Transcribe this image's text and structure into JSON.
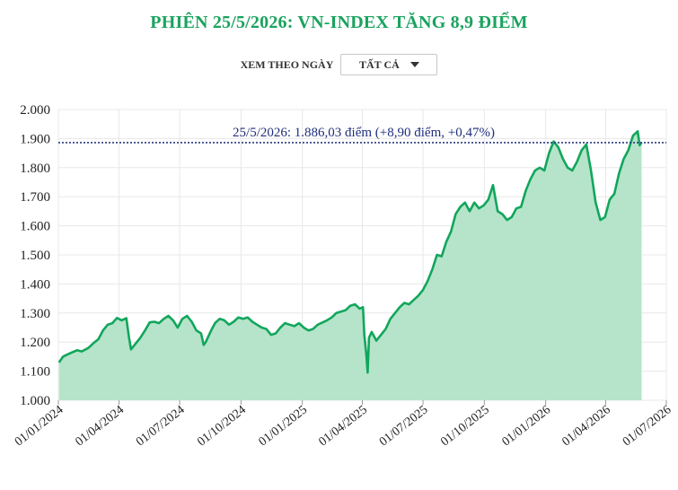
{
  "header": {
    "title": "PHIÊN 25/5/2026: VN-INDEX TĂNG 8,9 ĐIỂM"
  },
  "filter": {
    "label": "XEM THEO NGÀY",
    "selected": "TẤT CẢ"
  },
  "colors": {
    "title": "#1aa35e",
    "line": "#12a65c",
    "area": "#b5e4ca",
    "refline": "#2b3a7e",
    "annotation": "#1f2f7a",
    "grid": "#e8e8e8"
  },
  "chart_data": {
    "type": "area",
    "title": "PHIÊN 25/5/2026: VN-INDEX TĂNG 8,9 ĐIỂM",
    "xlabel": "",
    "ylabel": "",
    "xlim": [
      "2024-01-01",
      "2026-07-01"
    ],
    "ylim": [
      1000,
      2000
    ],
    "yticks": [
      1000,
      1100,
      1200,
      1300,
      1400,
      1500,
      1600,
      1700,
      1800,
      1900,
      2000
    ],
    "ytick_labels": [
      "1.000",
      "1.100",
      "1.200",
      "1.300",
      "1.400",
      "1.500",
      "1.600",
      "1.700",
      "1.800",
      "1.900",
      "2.000"
    ],
    "xticks": [
      "2024-01-01",
      "2024-04-01",
      "2024-07-01",
      "2024-10-01",
      "2025-01-01",
      "2025-04-01",
      "2025-07-01",
      "2025-10-01",
      "2026-01-01",
      "2026-04-01",
      "2026-07-01"
    ],
    "xtick_labels": [
      "01/01/2024",
      "01/04/2024",
      "01/07/2024",
      "01/10/2024",
      "01/01/2025",
      "01/04/2025",
      "01/07/2025",
      "01/10/2025",
      "01/01/2026",
      "01/04/2026",
      "01/07/2026"
    ],
    "grid": true,
    "reference_line": {
      "y": 1886.03
    },
    "annotation": "25/5/2026: 1.886,03 điểm (+8,90 điểm, +0,47%)",
    "series": [
      {
        "points": [
          [
            "2024-01-02",
            1130
          ],
          [
            "2024-01-08",
            1150
          ],
          [
            "2024-01-15",
            1158
          ],
          [
            "2024-01-22",
            1165
          ],
          [
            "2024-01-29",
            1172
          ],
          [
            "2024-02-05",
            1168
          ],
          [
            "2024-02-15",
            1180
          ],
          [
            "2024-02-22",
            1195
          ],
          [
            "2024-03-01",
            1210
          ],
          [
            "2024-03-08",
            1240
          ],
          [
            "2024-03-15",
            1260
          ],
          [
            "2024-03-22",
            1265
          ],
          [
            "2024-03-29",
            1283
          ],
          [
            "2024-04-05",
            1275
          ],
          [
            "2024-04-12",
            1282
          ],
          [
            "2024-04-16",
            1215
          ],
          [
            "2024-04-19",
            1175
          ],
          [
            "2024-04-26",
            1195
          ],
          [
            "2024-05-03",
            1215
          ],
          [
            "2024-05-10",
            1240
          ],
          [
            "2024-05-17",
            1268
          ],
          [
            "2024-05-24",
            1270
          ],
          [
            "2024-05-31",
            1265
          ],
          [
            "2024-06-07",
            1280
          ],
          [
            "2024-06-14",
            1290
          ],
          [
            "2024-06-21",
            1275
          ],
          [
            "2024-06-28",
            1250
          ],
          [
            "2024-07-05",
            1280
          ],
          [
            "2024-07-12",
            1290
          ],
          [
            "2024-07-19",
            1270
          ],
          [
            "2024-07-26",
            1240
          ],
          [
            "2024-08-02",
            1230
          ],
          [
            "2024-08-06",
            1190
          ],
          [
            "2024-08-09",
            1200
          ],
          [
            "2024-08-16",
            1235
          ],
          [
            "2024-08-23",
            1265
          ],
          [
            "2024-08-30",
            1280
          ],
          [
            "2024-09-06",
            1275
          ],
          [
            "2024-09-13",
            1260
          ],
          [
            "2024-09-20",
            1270
          ],
          [
            "2024-09-27",
            1285
          ],
          [
            "2024-10-04",
            1280
          ],
          [
            "2024-10-11",
            1285
          ],
          [
            "2024-10-18",
            1270
          ],
          [
            "2024-10-25",
            1260
          ],
          [
            "2024-11-01",
            1250
          ],
          [
            "2024-11-08",
            1245
          ],
          [
            "2024-11-15",
            1225
          ],
          [
            "2024-11-22",
            1230
          ],
          [
            "2024-11-29",
            1250
          ],
          [
            "2024-12-06",
            1265
          ],
          [
            "2024-12-13",
            1260
          ],
          [
            "2024-12-20",
            1255
          ],
          [
            "2024-12-27",
            1265
          ],
          [
            "2025-01-03",
            1250
          ],
          [
            "2025-01-10",
            1240
          ],
          [
            "2025-01-17",
            1245
          ],
          [
            "2025-01-24",
            1260
          ],
          [
            "2025-02-07",
            1275
          ],
          [
            "2025-02-14",
            1285
          ],
          [
            "2025-02-21",
            1300
          ],
          [
            "2025-02-28",
            1305
          ],
          [
            "2025-03-07",
            1310
          ],
          [
            "2025-03-14",
            1325
          ],
          [
            "2025-03-21",
            1330
          ],
          [
            "2025-03-28",
            1315
          ],
          [
            "2025-04-02",
            1320
          ],
          [
            "2025-04-04",
            1225
          ],
          [
            "2025-04-07",
            1155
          ],
          [
            "2025-04-09",
            1095
          ],
          [
            "2025-04-11",
            1215
          ],
          [
            "2025-04-15",
            1235
          ],
          [
            "2025-04-22",
            1205
          ],
          [
            "2025-04-29",
            1225
          ],
          [
            "2025-05-06",
            1245
          ],
          [
            "2025-05-13",
            1280
          ],
          [
            "2025-05-20",
            1300
          ],
          [
            "2025-05-27",
            1320
          ],
          [
            "2025-06-03",
            1335
          ],
          [
            "2025-06-10",
            1330
          ],
          [
            "2025-06-17",
            1345
          ],
          [
            "2025-06-24",
            1360
          ],
          [
            "2025-07-01",
            1380
          ],
          [
            "2025-07-08",
            1410
          ],
          [
            "2025-07-15",
            1450
          ],
          [
            "2025-07-22",
            1500
          ],
          [
            "2025-07-29",
            1495
          ],
          [
            "2025-08-05",
            1545
          ],
          [
            "2025-08-12",
            1580
          ],
          [
            "2025-08-19",
            1640
          ],
          [
            "2025-08-26",
            1665
          ],
          [
            "2025-09-02",
            1680
          ],
          [
            "2025-09-09",
            1650
          ],
          [
            "2025-09-16",
            1680
          ],
          [
            "2025-09-23",
            1660
          ],
          [
            "2025-09-30",
            1670
          ],
          [
            "2025-10-07",
            1690
          ],
          [
            "2025-10-14",
            1740
          ],
          [
            "2025-10-21",
            1650
          ],
          [
            "2025-10-28",
            1640
          ],
          [
            "2025-11-04",
            1620
          ],
          [
            "2025-11-11",
            1630
          ],
          [
            "2025-11-18",
            1660
          ],
          [
            "2025-11-25",
            1665
          ],
          [
            "2025-12-02",
            1720
          ],
          [
            "2025-12-09",
            1760
          ],
          [
            "2025-12-16",
            1790
          ],
          [
            "2025-12-23",
            1800
          ],
          [
            "2025-12-30",
            1790
          ],
          [
            "2026-01-06",
            1850
          ],
          [
            "2026-01-13",
            1890
          ],
          [
            "2026-01-20",
            1870
          ],
          [
            "2026-01-27",
            1830
          ],
          [
            "2026-02-03",
            1800
          ],
          [
            "2026-02-10",
            1790
          ],
          [
            "2026-02-17",
            1820
          ],
          [
            "2026-02-24",
            1860
          ],
          [
            "2026-03-03",
            1880
          ],
          [
            "2026-03-10",
            1790
          ],
          [
            "2026-03-17",
            1680
          ],
          [
            "2026-03-24",
            1620
          ],
          [
            "2026-03-31",
            1630
          ],
          [
            "2026-04-07",
            1690
          ],
          [
            "2026-04-14",
            1710
          ],
          [
            "2026-04-21",
            1780
          ],
          [
            "2026-04-28",
            1830
          ],
          [
            "2026-05-05",
            1860
          ],
          [
            "2026-05-12",
            1910
          ],
          [
            "2026-05-19",
            1925
          ],
          [
            "2026-05-22",
            1877.13
          ],
          [
            "2026-05-25",
            1886.03
          ]
        ]
      }
    ]
  }
}
